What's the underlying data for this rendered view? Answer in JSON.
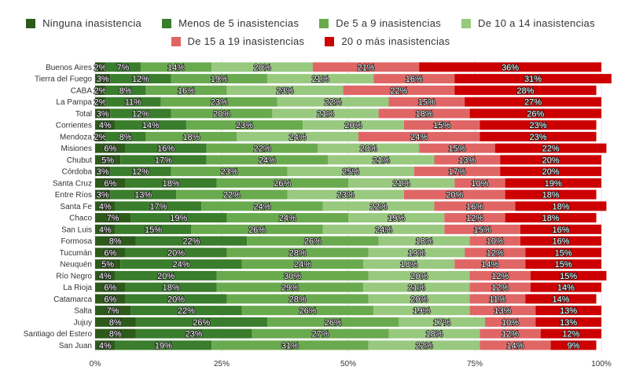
{
  "chart_data": {
    "type": "bar",
    "stacked": true,
    "orientation": "horizontal",
    "percent_scale": true,
    "legend_position": "top",
    "grid": true,
    "x_ticks": [
      "0%",
      "25%",
      "50%",
      "75%",
      "100%"
    ],
    "xlim": [
      0,
      100
    ],
    "categories": [
      "Buenos Aires",
      "Tierra del Fuego",
      "CABA",
      "La Pampa",
      "Total",
      "Corrientes",
      "Mendoza",
      "Misiones",
      "Chubut",
      "Córdoba",
      "Santa Cruz",
      "Entre Ríos",
      "Santa Fe",
      "Chaco",
      "San Luis",
      "Formosa",
      "Tucumán",
      "Neuquén",
      "Río Negro",
      "La Rioja",
      "Catamarca",
      "Salta",
      "Jujuy",
      "Santiago del Estero",
      "San Juan"
    ],
    "series": [
      {
        "name": "Ninguna inasistencia",
        "color": "#2d5a1b",
        "values": [
          2,
          3,
          2,
          2,
          3,
          4,
          2,
          6,
          5,
          3,
          6,
          3,
          4,
          7,
          4,
          8,
          6,
          5,
          4,
          6,
          6,
          7,
          8,
          8,
          4
        ]
      },
      {
        "name": "Menos de 5 inasistencias",
        "color": "#3a7d2c",
        "values": [
          7,
          12,
          8,
          11,
          12,
          14,
          8,
          16,
          17,
          12,
          18,
          13,
          17,
          19,
          15,
          22,
          20,
          24,
          20,
          18,
          20,
          22,
          26,
          23,
          19
        ]
      },
      {
        "name": "De 5 a 9 inasistencias",
        "color": "#6aaa4f",
        "values": [
          14,
          19,
          16,
          23,
          20,
          23,
          18,
          22,
          24,
          23,
          26,
          22,
          24,
          24,
          26,
          26,
          28,
          24,
          30,
          29,
          28,
          26,
          26,
          27,
          31
        ]
      },
      {
        "name": "De 10 a 14 inasistencias",
        "color": "#98c97f",
        "values": [
          20,
          21,
          23,
          22,
          21,
          20,
          24,
          20,
          21,
          25,
          21,
          23,
          22,
          19,
          24,
          18,
          19,
          18,
          20,
          21,
          20,
          19,
          17,
          18,
          22
        ]
      },
      {
        "name": "De 15 a 19 inasistencias",
        "color": "#e06666",
        "values": [
          21,
          16,
          22,
          15,
          18,
          15,
          24,
          15,
          13,
          17,
          10,
          20,
          16,
          12,
          15,
          10,
          12,
          14,
          12,
          12,
          11,
          13,
          10,
          12,
          14
        ]
      },
      {
        "name": "20 o más inasistencias",
        "color": "#cc0000",
        "values": [
          36,
          31,
          28,
          27,
          26,
          23,
          23,
          22,
          20,
          20,
          19,
          18,
          18,
          18,
          16,
          16,
          15,
          15,
          15,
          14,
          14,
          13,
          13,
          12,
          9
        ]
      }
    ]
  }
}
